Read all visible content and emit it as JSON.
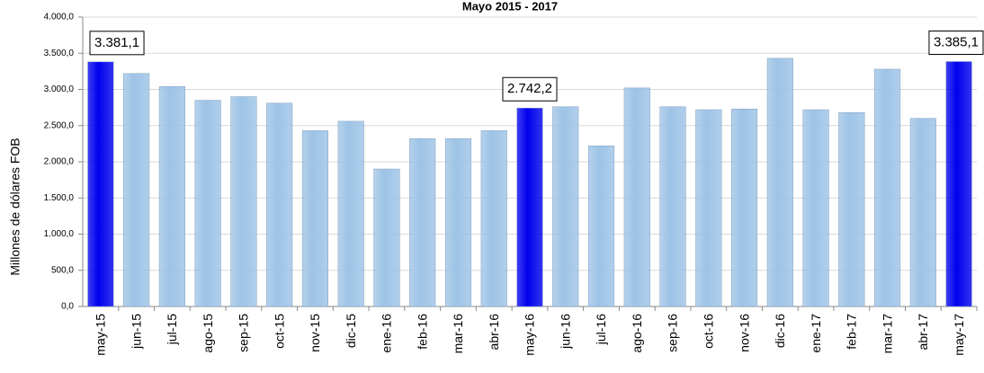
{
  "chart_data": {
    "type": "bar",
    "title": "Mayo 2015 - 2017",
    "y_label": "Millones de dólares FOB",
    "categories": [
      "may-15",
      "jun-15",
      "jul-15",
      "ago-15",
      "sep-15",
      "oct-15",
      "nov-15",
      "dic-15",
      "ene-16",
      "feb-16",
      "mar-16",
      "abr-16",
      "may-16",
      "jun-16",
      "jul-16",
      "ago-16",
      "sep-16",
      "oct-16",
      "nov-16",
      "dic-16",
      "ene-17",
      "feb-17",
      "mar-17",
      "abr-17",
      "may-17"
    ],
    "values": [
      3381.1,
      3220,
      3040,
      2850,
      2900,
      2810,
      2430,
      2560,
      1900,
      2320,
      2320,
      2430,
      2742.2,
      2760,
      2220,
      3020,
      2760,
      2720,
      2730,
      3430,
      2720,
      2680,
      3280,
      2600,
      3385.1
    ],
    "value_labels": [
      "3.381,1",
      null,
      null,
      null,
      null,
      null,
      null,
      null,
      null,
      null,
      null,
      null,
      "2.742,2",
      null,
      null,
      null,
      null,
      null,
      null,
      null,
      null,
      null,
      null,
      null,
      "3.385,1"
    ],
    "colors": [
      "#0000ee",
      "#9dc3e6",
      "#9dc3e6",
      "#9dc3e6",
      "#9dc3e6",
      "#9dc3e6",
      "#9dc3e6",
      "#9dc3e6",
      "#9dc3e6",
      "#9dc3e6",
      "#9dc3e6",
      "#9dc3e6",
      "#0000ee",
      "#9dc3e6",
      "#9dc3e6",
      "#9dc3e6",
      "#9dc3e6",
      "#9dc3e6",
      "#9dc3e6",
      "#9dc3e6",
      "#9dc3e6",
      "#9dc3e6",
      "#9dc3e6",
      "#9dc3e6",
      "#0000ee"
    ],
    "ylim": [
      0,
      4000
    ],
    "yticks": [
      {
        "value": 0,
        "label": "0,0"
      },
      {
        "value": 500,
        "label": "500,0"
      },
      {
        "value": 1000,
        "label": "1.000,0"
      },
      {
        "value": 1500,
        "label": "1.500,0"
      },
      {
        "value": 2000,
        "label": "2.000,0"
      },
      {
        "value": 2500,
        "label": "2.500,0"
      },
      {
        "value": 3000,
        "label": "3.000,0"
      },
      {
        "value": 3500,
        "label": "3.500,0"
      },
      {
        "value": 4000,
        "label": "4.000,0"
      }
    ],
    "grid": true
  }
}
